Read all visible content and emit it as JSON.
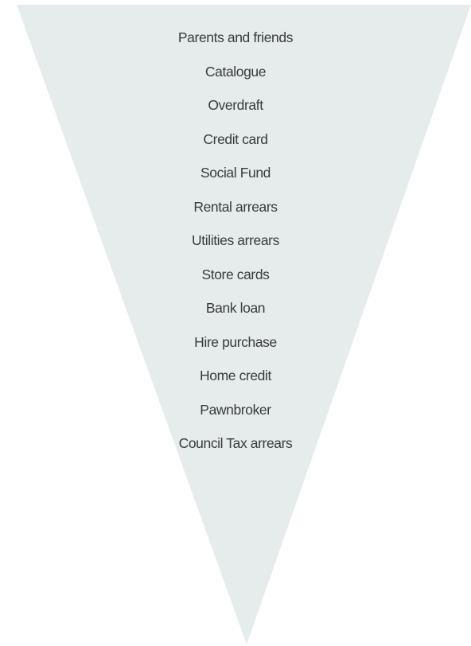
{
  "diagram": {
    "shape_color": "#e6ecec",
    "text_color": "#3a3a3a",
    "items": [
      "Parents and friends",
      "Catalogue",
      "Overdraft",
      "Credit card",
      "Social Fund",
      "Rental arrears",
      "Utilities arrears",
      "Store cards",
      "Bank loan",
      "Hire purchase",
      "Home credit",
      "Pawnbroker",
      "Council Tax arrears"
    ]
  }
}
